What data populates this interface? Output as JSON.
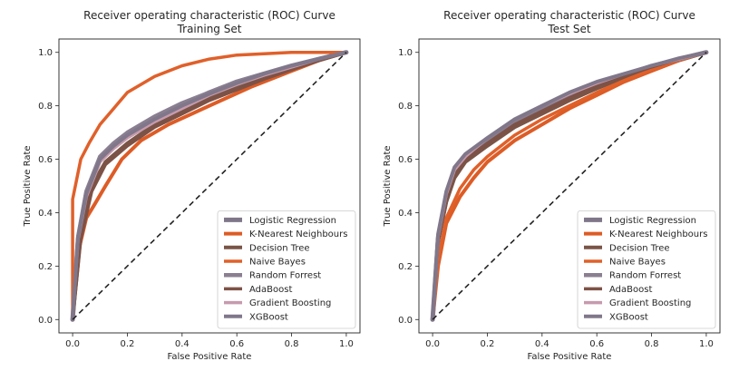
{
  "colors": {
    "Logistic Regression": "#7f7789",
    "K-Nearest Neighbours": "#dd5c26",
    "Decision Tree": "#7a5446",
    "Naive Bayes": "#e0602a",
    "Random Forrest": "#8a7f91",
    "AdaBoost": "#7d5246",
    "Gradient Boosting": "#c79aad",
    "XGBoost": "#80778a",
    "diagonal": "#222222"
  },
  "chart_data": [
    {
      "type": "line",
      "title": "Receiver operating characteristic (ROC) Curve",
      "subtitle": "Training Set",
      "xlabel": "False Positive Rate",
      "ylabel": "True Positive Rate",
      "xlim": [
        -0.05,
        1.05
      ],
      "ylim": [
        -0.05,
        1.05
      ],
      "xticks": [
        "0.0",
        "0.2",
        "0.4",
        "0.6",
        "0.8",
        "1.0"
      ],
      "yticks": [
        "0.0",
        "0.2",
        "0.4",
        "0.6",
        "0.8",
        "1.0"
      ],
      "grid": false,
      "legend_position": "lower-right",
      "series": [
        {
          "name": "Logistic Regression",
          "x": [
            0,
            0.02,
            0.05,
            0.1,
            0.15,
            0.2,
            0.3,
            0.4,
            0.5,
            0.6,
            0.7,
            0.8,
            0.9,
            1.0
          ],
          "y": [
            0,
            0.3,
            0.47,
            0.6,
            0.65,
            0.69,
            0.75,
            0.8,
            0.85,
            0.89,
            0.92,
            0.95,
            0.975,
            1.0
          ]
        },
        {
          "name": "K-Nearest Neighbours",
          "x": [
            0,
            0.02,
            0.05,
            0.08,
            0.12,
            0.18,
            0.25,
            0.35,
            0.5,
            0.65,
            0.8,
            0.9,
            1.0
          ],
          "y": [
            0,
            0.25,
            0.38,
            0.43,
            0.5,
            0.6,
            0.67,
            0.73,
            0.8,
            0.87,
            0.93,
            0.97,
            1.0
          ]
        },
        {
          "name": "Decision Tree",
          "x": [
            0,
            0.03,
            0.07,
            0.12,
            0.2,
            0.3,
            0.4,
            0.5,
            0.6,
            0.7,
            0.8,
            0.9,
            1.0
          ],
          "y": [
            0,
            0.32,
            0.5,
            0.59,
            0.66,
            0.73,
            0.78,
            0.83,
            0.87,
            0.91,
            0.94,
            0.97,
            1.0
          ]
        },
        {
          "name": "Naive Bayes",
          "x": [
            0,
            0.0,
            0.01,
            0.03,
            0.06,
            0.1,
            0.15,
            0.2,
            0.3,
            0.4,
            0.5,
            0.6,
            0.7,
            0.8,
            0.9,
            1.0
          ],
          "y": [
            0,
            0.45,
            0.5,
            0.6,
            0.66,
            0.73,
            0.79,
            0.85,
            0.91,
            0.95,
            0.975,
            0.99,
            0.995,
            1.0,
            1.0,
            1.0
          ]
        },
        {
          "name": "Random Forrest",
          "x": [
            0,
            0.02,
            0.05,
            0.1,
            0.15,
            0.2,
            0.3,
            0.4,
            0.5,
            0.6,
            0.7,
            0.8,
            0.9,
            1.0
          ],
          "y": [
            0,
            0.31,
            0.48,
            0.61,
            0.66,
            0.7,
            0.76,
            0.81,
            0.85,
            0.89,
            0.92,
            0.95,
            0.975,
            1.0
          ]
        },
        {
          "name": "AdaBoost",
          "x": [
            0,
            0.03,
            0.07,
            0.12,
            0.2,
            0.3,
            0.4,
            0.5,
            0.6,
            0.7,
            0.8,
            0.9,
            1.0
          ],
          "y": [
            0,
            0.3,
            0.48,
            0.58,
            0.65,
            0.72,
            0.77,
            0.82,
            0.86,
            0.9,
            0.935,
            0.97,
            1.0
          ]
        },
        {
          "name": "Gradient Boosting",
          "x": [
            0,
            0.02,
            0.05,
            0.1,
            0.15,
            0.2,
            0.3,
            0.4,
            0.5,
            0.6,
            0.7,
            0.8,
            0.9,
            1.0
          ],
          "y": [
            0,
            0.3,
            0.46,
            0.59,
            0.64,
            0.68,
            0.74,
            0.79,
            0.84,
            0.88,
            0.915,
            0.945,
            0.975,
            1.0
          ]
        },
        {
          "name": "XGBoost",
          "x": [
            0,
            0.02,
            0.05,
            0.1,
            0.15,
            0.2,
            0.3,
            0.4,
            0.5,
            0.6,
            0.7,
            0.8,
            0.9,
            1.0
          ],
          "y": [
            0,
            0.31,
            0.47,
            0.6,
            0.65,
            0.69,
            0.75,
            0.8,
            0.845,
            0.885,
            0.92,
            0.95,
            0.975,
            1.0
          ]
        }
      ]
    },
    {
      "type": "line",
      "title": "Receiver operating characteristic (ROC) Curve",
      "subtitle": "Test Set",
      "xlabel": "False Positive Rate",
      "ylabel": "True Positive Rate",
      "xlim": [
        -0.05,
        1.05
      ],
      "ylim": [
        -0.05,
        1.05
      ],
      "xticks": [
        "0.0",
        "0.2",
        "0.4",
        "0.6",
        "0.8",
        "1.0"
      ],
      "yticks": [
        "0.0",
        "0.2",
        "0.4",
        "0.6",
        "0.8",
        "1.0"
      ],
      "grid": false,
      "legend_position": "lower-right",
      "series": [
        {
          "name": "Logistic Regression",
          "x": [
            0,
            0.02,
            0.05,
            0.08,
            0.12,
            0.2,
            0.3,
            0.4,
            0.5,
            0.6,
            0.7,
            0.8,
            0.9,
            1.0
          ],
          "y": [
            0,
            0.3,
            0.45,
            0.55,
            0.6,
            0.66,
            0.73,
            0.78,
            0.83,
            0.875,
            0.91,
            0.945,
            0.975,
            1.0
          ]
        },
        {
          "name": "K-Nearest Neighbours",
          "x": [
            0,
            0.02,
            0.05,
            0.1,
            0.15,
            0.2,
            0.3,
            0.4,
            0.5,
            0.6,
            0.7,
            0.8,
            0.9,
            1.0
          ],
          "y": [
            0,
            0.2,
            0.36,
            0.46,
            0.53,
            0.59,
            0.67,
            0.73,
            0.79,
            0.84,
            0.89,
            0.93,
            0.97,
            1.0
          ]
        },
        {
          "name": "Decision Tree",
          "x": [
            0,
            0.02,
            0.05,
            0.08,
            0.12,
            0.2,
            0.3,
            0.4,
            0.5,
            0.6,
            0.7,
            0.8,
            0.9,
            1.0
          ],
          "y": [
            0,
            0.29,
            0.44,
            0.53,
            0.59,
            0.65,
            0.72,
            0.77,
            0.82,
            0.865,
            0.905,
            0.94,
            0.97,
            1.0
          ]
        },
        {
          "name": "Naive Bayes",
          "x": [
            0,
            0.02,
            0.05,
            0.1,
            0.15,
            0.2,
            0.3,
            0.4,
            0.5,
            0.6,
            0.7,
            0.8,
            0.9,
            1.0
          ],
          "y": [
            0,
            0.22,
            0.38,
            0.49,
            0.56,
            0.61,
            0.69,
            0.75,
            0.8,
            0.85,
            0.895,
            0.935,
            0.97,
            1.0
          ]
        },
        {
          "name": "Random Forrest",
          "x": [
            0,
            0.02,
            0.05,
            0.08,
            0.12,
            0.2,
            0.3,
            0.4,
            0.5,
            0.6,
            0.7,
            0.8,
            0.9,
            1.0
          ],
          "y": [
            0,
            0.31,
            0.47,
            0.56,
            0.61,
            0.67,
            0.74,
            0.79,
            0.84,
            0.88,
            0.915,
            0.95,
            0.975,
            1.0
          ]
        },
        {
          "name": "AdaBoost",
          "x": [
            0,
            0.02,
            0.05,
            0.08,
            0.12,
            0.2,
            0.3,
            0.4,
            0.5,
            0.6,
            0.7,
            0.8,
            0.9,
            1.0
          ],
          "y": [
            0,
            0.3,
            0.46,
            0.55,
            0.6,
            0.66,
            0.73,
            0.78,
            0.83,
            0.875,
            0.91,
            0.945,
            0.975,
            1.0
          ]
        },
        {
          "name": "Gradient Boosting",
          "x": [
            0,
            0.02,
            0.05,
            0.08,
            0.12,
            0.2,
            0.3,
            0.4,
            0.5,
            0.6,
            0.7,
            0.8,
            0.9,
            1.0
          ],
          "y": [
            0,
            0.31,
            0.47,
            0.56,
            0.61,
            0.68,
            0.75,
            0.8,
            0.845,
            0.885,
            0.92,
            0.95,
            0.975,
            1.0
          ]
        },
        {
          "name": "XGBoost",
          "x": [
            0,
            0.02,
            0.05,
            0.08,
            0.12,
            0.2,
            0.3,
            0.4,
            0.5,
            0.6,
            0.7,
            0.8,
            0.9,
            1.0
          ],
          "y": [
            0,
            0.32,
            0.48,
            0.57,
            0.62,
            0.68,
            0.75,
            0.8,
            0.85,
            0.89,
            0.92,
            0.95,
            0.978,
            1.0
          ]
        }
      ]
    }
  ]
}
